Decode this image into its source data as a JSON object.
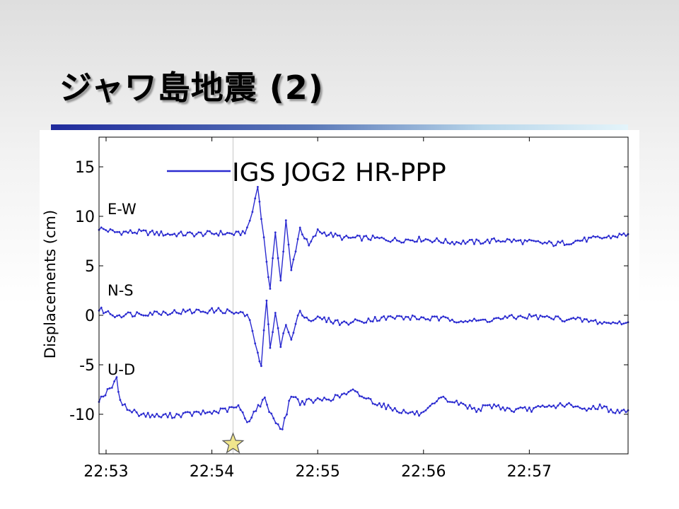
{
  "slide": {
    "title": "ジャワ島地震 (2)"
  },
  "chart_data": {
    "type": "line",
    "title": "",
    "xlabel": "",
    "ylabel": "Displacements (cm)",
    "xlim": [
      "22:52:56",
      "22:57:56"
    ],
    "ylim": [
      -14,
      18
    ],
    "xticks": [
      "22:53",
      "22:54",
      "22:55",
      "22:56",
      "22:57"
    ],
    "yticks": [
      -10,
      -5,
      0,
      5,
      10,
      15
    ],
    "grid": false,
    "legend": {
      "placement": "top-left",
      "entries": [
        "IGS JOG2 HR-PPP"
      ]
    },
    "series_color": "#2b2bd0",
    "marker_color": "#2b2bd0",
    "series": [
      {
        "name": "E-W",
        "x": [
          "22:52:56",
          "22:53:05",
          "22:53:20",
          "22:53:35",
          "22:53:50",
          "22:54:05",
          "22:54:15",
          "22:54:20",
          "22:54:23",
          "22:54:26",
          "22:54:28",
          "22:54:31",
          "22:54:33",
          "22:54:36",
          "22:54:39",
          "22:54:42",
          "22:54:45",
          "22:54:50",
          "22:54:55",
          "22:55:00",
          "22:55:15",
          "22:55:30",
          "22:55:45",
          "22:56:00",
          "22:56:15",
          "22:56:30",
          "22:56:45",
          "22:57:00",
          "22:57:15",
          "22:57:30",
          "22:57:45",
          "22:57:56"
        ],
        "y": [
          8.8,
          8.4,
          8.4,
          8.2,
          8.2,
          8.3,
          8.2,
          8.6,
          10.5,
          13.0,
          10.0,
          5.5,
          2.5,
          8.5,
          3.5,
          9.5,
          4.5,
          8.8,
          7.0,
          8.5,
          7.8,
          7.8,
          7.6,
          7.7,
          7.4,
          7.4,
          7.6,
          7.4,
          7.2,
          7.6,
          7.9,
          8.2
        ]
      },
      {
        "name": "N-S",
        "x": [
          "22:52:56",
          "22:53:05",
          "22:53:20",
          "22:53:35",
          "22:53:50",
          "22:54:05",
          "22:54:15",
          "22:54:20",
          "22:54:23",
          "22:54:26",
          "22:54:28",
          "22:54:31",
          "22:54:33",
          "22:54:36",
          "22:54:39",
          "22:54:42",
          "22:54:45",
          "22:54:50",
          "22:54:55",
          "22:55:00",
          "22:55:15",
          "22:55:30",
          "22:55:45",
          "22:56:00",
          "22:56:15",
          "22:56:30",
          "22:56:45",
          "22:57:00",
          "22:57:15",
          "22:57:30",
          "22:57:45",
          "22:57:56"
        ],
        "y": [
          0.6,
          0.0,
          0.2,
          0.3,
          0.4,
          0.5,
          0.2,
          0.0,
          -1.5,
          -4.0,
          -5.0,
          1.5,
          -3.5,
          0.5,
          -3.0,
          -1.0,
          -2.5,
          0.5,
          -0.5,
          -0.3,
          -0.8,
          -0.4,
          -0.2,
          -0.3,
          -0.4,
          -0.6,
          -0.3,
          -0.1,
          -0.3,
          -0.5,
          -0.8,
          -0.7
        ]
      },
      {
        "name": "U-D",
        "x": [
          "22:52:56",
          "22:53:02",
          "22:53:06",
          "22:53:08",
          "22:53:12",
          "22:53:20",
          "22:53:30",
          "22:53:45",
          "22:54:00",
          "22:54:10",
          "22:54:15",
          "22:54:20",
          "22:54:25",
          "22:54:30",
          "22:54:35",
          "22:54:40",
          "22:54:45",
          "22:54:50",
          "22:55:00",
          "22:55:10",
          "22:55:20",
          "22:55:30",
          "22:55:40",
          "22:55:50",
          "22:56:00",
          "22:56:10",
          "22:56:20",
          "22:56:30",
          "22:56:40",
          "22:56:50",
          "22:57:00",
          "22:57:10",
          "22:57:20",
          "22:57:30",
          "22:57:40",
          "22:57:50",
          "22:57:56"
        ],
        "y": [
          -8.5,
          -7.5,
          -6.5,
          -8.5,
          -9.5,
          -10.0,
          -10.2,
          -10.0,
          -9.8,
          -9.5,
          -9.2,
          -10.8,
          -9.5,
          -8.5,
          -10.5,
          -11.5,
          -8.0,
          -8.8,
          -8.6,
          -8.3,
          -7.7,
          -8.6,
          -9.3,
          -9.8,
          -10.0,
          -8.4,
          -8.9,
          -9.5,
          -9.1,
          -9.6,
          -9.5,
          -9.3,
          -9.0,
          -9.5,
          -9.2,
          -9.8,
          -9.6
        ]
      }
    ],
    "series_labels": [
      {
        "text": "E-W",
        "y": 10.2
      },
      {
        "text": "N-S",
        "y": 2.0
      },
      {
        "text": "U-D",
        "y": -6.0
      }
    ],
    "annotations": [
      {
        "type": "vertical-line",
        "x": "22:54:12",
        "color": "#c8c8c8"
      },
      {
        "type": "star-marker",
        "x": "22:54:12",
        "y": -13.0,
        "color": "#f0e68c"
      }
    ]
  }
}
